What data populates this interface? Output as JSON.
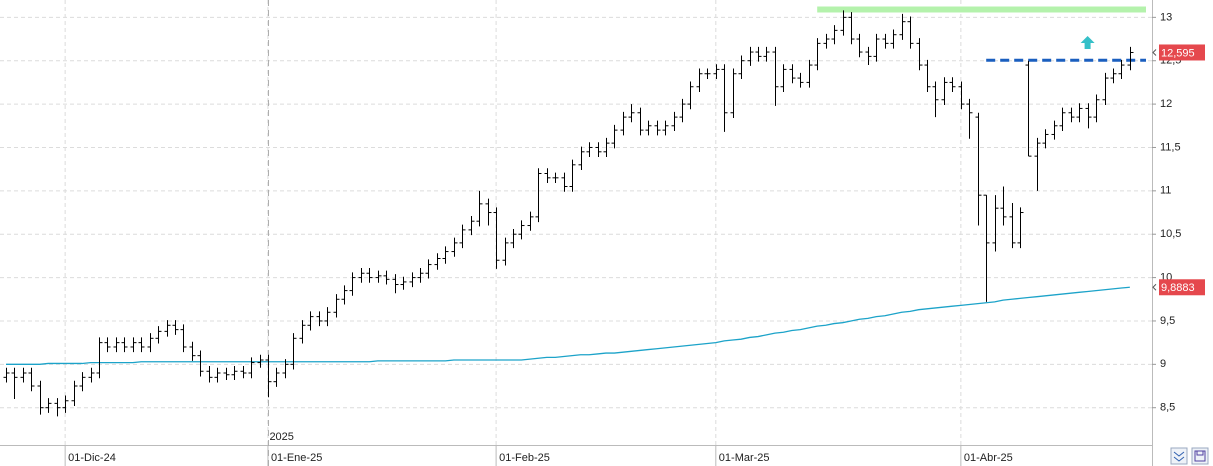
{
  "chart_data": {
    "type": "ohlc",
    "ylim": [
      8.07,
      13.2
    ],
    "yticks": [
      {
        "value": 8.5,
        "label": "8,5"
      },
      9,
      {
        "value": 9.5,
        "label": "9,5"
      },
      10,
      {
        "value": 10.5,
        "label": "10,5"
      },
      11,
      {
        "value": 11.5,
        "label": "11,5"
      },
      12,
      {
        "value": 12.5,
        "label": "12,5"
      },
      13
    ],
    "xticks": [
      {
        "value": 7,
        "label": "01-Dic-24"
      },
      {
        "value": 31,
        "label": "01-Ene-25"
      },
      {
        "value": 58,
        "label": "01-Feb-25"
      },
      {
        "value": 84,
        "label": "01-Mar-25"
      },
      {
        "value": 113,
        "label": "01-Abr-25"
      }
    ],
    "year_marker": {
      "value": 31,
      "label": "2025"
    },
    "grid": true,
    "ohlc": {
      "color": "#000000",
      "open": [
        8.85,
        8.9,
        8.85,
        8.9,
        8.75,
        8.5,
        8.55,
        8.5,
        8.58,
        8.75,
        8.85,
        8.9,
        9.25,
        9.2,
        9.25,
        9.2,
        9.25,
        9.2,
        9.3,
        9.38,
        9.45,
        9.4,
        9.2,
        9.1,
        8.92,
        8.85,
        8.9,
        8.88,
        8.92,
        8.9,
        9.02,
        9.05,
        8.8,
        8.9,
        9.0,
        9.3,
        9.45,
        9.55,
        9.5,
        9.6,
        9.75,
        9.85,
        10.0,
        10.05,
        10.0,
        10.02,
        9.98,
        9.92,
        9.95,
        10.0,
        10.05,
        10.15,
        10.22,
        10.3,
        10.4,
        10.55,
        10.65,
        10.85,
        10.75,
        10.2,
        10.4,
        10.5,
        10.6,
        10.7,
        11.2,
        11.15,
        11.15,
        11.05,
        11.3,
        11.45,
        11.5,
        11.45,
        11.55,
        11.7,
        11.85,
        11.9,
        11.7,
        11.75,
        11.7,
        11.75,
        11.85,
        12.0,
        12.2,
        12.35,
        12.35,
        12.4,
        11.9,
        12.35,
        12.5,
        12.6,
        12.55,
        12.6,
        12.2,
        12.4,
        12.3,
        12.25,
        12.45,
        12.7,
        12.75,
        12.85,
        13.0,
        12.75,
        12.6,
        12.55,
        12.75,
        12.7,
        12.8,
        12.95,
        12.7,
        12.45,
        12.2,
        12.05,
        12.25,
        12.2,
        12.0,
        11.85,
        10.95,
        10.4,
        10.8,
        10.7,
        10.4,
        12.45,
        11.4,
        11.55,
        11.65,
        11.75,
        11.9,
        11.85,
        11.95,
        11.85,
        12.05,
        12.3,
        12.35,
        12.45
      ],
      "high": [
        8.96,
        8.96,
        8.96,
        8.96,
        8.81,
        8.61,
        8.61,
        8.64,
        8.81,
        8.91,
        8.96,
        9.31,
        9.31,
        9.31,
        9.31,
        9.31,
        9.31,
        9.36,
        9.44,
        9.51,
        9.51,
        9.46,
        9.26,
        9.16,
        8.98,
        8.96,
        8.96,
        8.98,
        8.98,
        9.08,
        9.11,
        9.11,
        8.96,
        9.06,
        9.36,
        9.51,
        9.61,
        9.61,
        9.66,
        9.81,
        9.91,
        10.06,
        10.11,
        10.11,
        10.08,
        10.08,
        10.04,
        10.01,
        10.06,
        10.11,
        10.21,
        10.28,
        10.36,
        10.46,
        10.61,
        10.71,
        11.0,
        10.91,
        10.81,
        10.46,
        10.56,
        10.66,
        10.76,
        11.26,
        11.26,
        11.21,
        11.21,
        11.36,
        11.51,
        11.56,
        11.56,
        11.61,
        11.76,
        11.91,
        12.0,
        11.96,
        11.81,
        11.81,
        11.81,
        11.91,
        12.06,
        12.26,
        12.41,
        12.41,
        12.46,
        12.46,
        12.41,
        12.56,
        12.66,
        12.66,
        12.66,
        12.66,
        12.46,
        12.46,
        12.36,
        12.51,
        12.76,
        12.81,
        12.91,
        13.08,
        13.06,
        12.81,
        12.66,
        12.81,
        12.81,
        12.86,
        13.04,
        13.01,
        12.76,
        12.51,
        12.26,
        12.31,
        12.31,
        12.26,
        12.06,
        11.9,
        10.95,
        10.95,
        11.05,
        10.86,
        10.81,
        12.5,
        11.61,
        11.71,
        11.81,
        11.96,
        11.96,
        12.01,
        12.01,
        12.11,
        12.36,
        12.41,
        12.51,
        12.66
      ],
      "low": [
        8.79,
        8.6,
        8.79,
        8.69,
        8.42,
        8.44,
        8.4,
        8.44,
        8.52,
        8.69,
        8.79,
        8.84,
        9.14,
        9.14,
        9.14,
        9.14,
        9.14,
        9.14,
        9.24,
        9.32,
        9.34,
        9.14,
        9.04,
        8.86,
        8.79,
        8.79,
        8.82,
        8.82,
        8.84,
        8.84,
        8.96,
        8.62,
        8.74,
        8.84,
        8.94,
        9.24,
        9.39,
        9.44,
        9.44,
        9.54,
        9.69,
        9.79,
        9.94,
        9.94,
        9.94,
        9.92,
        9.82,
        9.86,
        9.89,
        9.94,
        9.99,
        10.09,
        10.16,
        10.24,
        10.34,
        10.49,
        10.59,
        10.6,
        10.1,
        10.14,
        10.34,
        10.44,
        10.54,
        10.64,
        11.09,
        11.09,
        10.99,
        10.99,
        11.24,
        11.39,
        11.39,
        11.39,
        11.49,
        11.64,
        11.79,
        11.64,
        11.64,
        11.64,
        11.64,
        11.69,
        11.79,
        11.94,
        12.14,
        12.29,
        12.29,
        11.68,
        11.84,
        12.29,
        12.44,
        12.49,
        12.49,
        11.98,
        12.14,
        12.24,
        12.19,
        12.19,
        12.39,
        12.64,
        12.69,
        12.79,
        12.69,
        12.54,
        12.45,
        12.49,
        12.64,
        12.64,
        12.74,
        12.64,
        12.39,
        12.14,
        11.85,
        11.99,
        12.14,
        11.94,
        11.6,
        10.6,
        9.72,
        10.3,
        10.6,
        10.34,
        10.34,
        11.4,
        11.0,
        11.49,
        11.59,
        11.69,
        11.79,
        11.79,
        11.72,
        11.79,
        11.99,
        12.24,
        12.29,
        12.39
      ],
      "close": [
        8.9,
        8.85,
        8.9,
        8.75,
        8.5,
        8.55,
        8.5,
        8.58,
        8.75,
        8.85,
        8.9,
        9.25,
        9.2,
        9.25,
        9.2,
        9.25,
        9.2,
        9.3,
        9.38,
        9.45,
        9.4,
        9.2,
        9.1,
        8.92,
        8.85,
        8.9,
        8.88,
        8.92,
        8.9,
        9.02,
        9.05,
        8.8,
        8.9,
        9.0,
        9.3,
        9.45,
        9.55,
        9.5,
        9.6,
        9.75,
        9.85,
        10.0,
        10.05,
        10.0,
        10.02,
        9.98,
        9.92,
        9.95,
        10.0,
        10.05,
        10.15,
        10.22,
        10.3,
        10.4,
        10.55,
        10.65,
        10.85,
        10.75,
        10.2,
        10.4,
        10.5,
        10.6,
        10.7,
        11.2,
        11.15,
        11.15,
        11.05,
        11.3,
        11.45,
        11.5,
        11.45,
        11.55,
        11.7,
        11.85,
        11.9,
        11.7,
        11.75,
        11.7,
        11.75,
        11.85,
        12.0,
        12.2,
        12.35,
        12.35,
        12.4,
        11.9,
        12.35,
        12.5,
        12.6,
        12.55,
        12.6,
        12.2,
        12.4,
        12.3,
        12.25,
        12.45,
        12.7,
        12.75,
        12.85,
        13.0,
        12.75,
        12.6,
        12.55,
        12.75,
        12.7,
        12.8,
        12.95,
        12.7,
        12.45,
        12.2,
        12.05,
        12.25,
        12.2,
        12.0,
        11.9,
        10.95,
        10.4,
        10.8,
        10.7,
        10.4,
        10.75,
        11.4,
        11.55,
        11.65,
        11.75,
        11.9,
        11.85,
        11.95,
        11.85,
        12.05,
        12.3,
        12.35,
        12.45,
        12.595
      ]
    },
    "moving_average": {
      "color": "#1ca3c9",
      "values": [
        9.0,
        9.0,
        9.0,
        9.0,
        9.0,
        9.01,
        9.01,
        9.01,
        9.01,
        9.01,
        9.02,
        9.02,
        9.02,
        9.02,
        9.02,
        9.02,
        9.03,
        9.03,
        9.03,
        9.03,
        9.03,
        9.03,
        9.03,
        9.03,
        9.03,
        9.03,
        9.03,
        9.03,
        9.03,
        9.03,
        9.03,
        9.03,
        9.03,
        9.03,
        9.03,
        9.03,
        9.03,
        9.03,
        9.03,
        9.03,
        9.03,
        9.03,
        9.03,
        9.03,
        9.04,
        9.04,
        9.04,
        9.04,
        9.04,
        9.04,
        9.04,
        9.04,
        9.04,
        9.05,
        9.05,
        9.05,
        9.05,
        9.05,
        9.05,
        9.05,
        9.05,
        9.05,
        9.06,
        9.07,
        9.08,
        9.08,
        9.09,
        9.1,
        9.11,
        9.11,
        9.12,
        9.13,
        9.13,
        9.14,
        9.15,
        9.16,
        9.17,
        9.18,
        9.19,
        9.2,
        9.21,
        9.22,
        9.23,
        9.24,
        9.25,
        9.27,
        9.28,
        9.29,
        9.31,
        9.32,
        9.34,
        9.36,
        9.37,
        9.39,
        9.4,
        9.42,
        9.44,
        9.45,
        9.47,
        9.48,
        9.5,
        9.52,
        9.53,
        9.55,
        9.56,
        9.58,
        9.6,
        9.61,
        9.63,
        9.64,
        9.65,
        9.66,
        9.67,
        9.68,
        9.69,
        9.7,
        9.71,
        9.72,
        9.74,
        9.75,
        9.76,
        9.77,
        9.78,
        9.79,
        9.8,
        9.81,
        9.82,
        9.83,
        9.84,
        9.85,
        9.86,
        9.87,
        9.88,
        9.8883
      ]
    },
    "levels": [
      {
        "value": 13.09,
        "color": "#b4f2ac"
      },
      {
        "value": 12.505,
        "color": "#1a5fbf",
        "dashed": true
      }
    ],
    "price_tags": [
      {
        "value": 12.595,
        "label": "12,595",
        "color": "#e5484d"
      },
      {
        "value": 9.8883,
        "label": "9,8883",
        "color": "#e5484d"
      }
    ]
  }
}
